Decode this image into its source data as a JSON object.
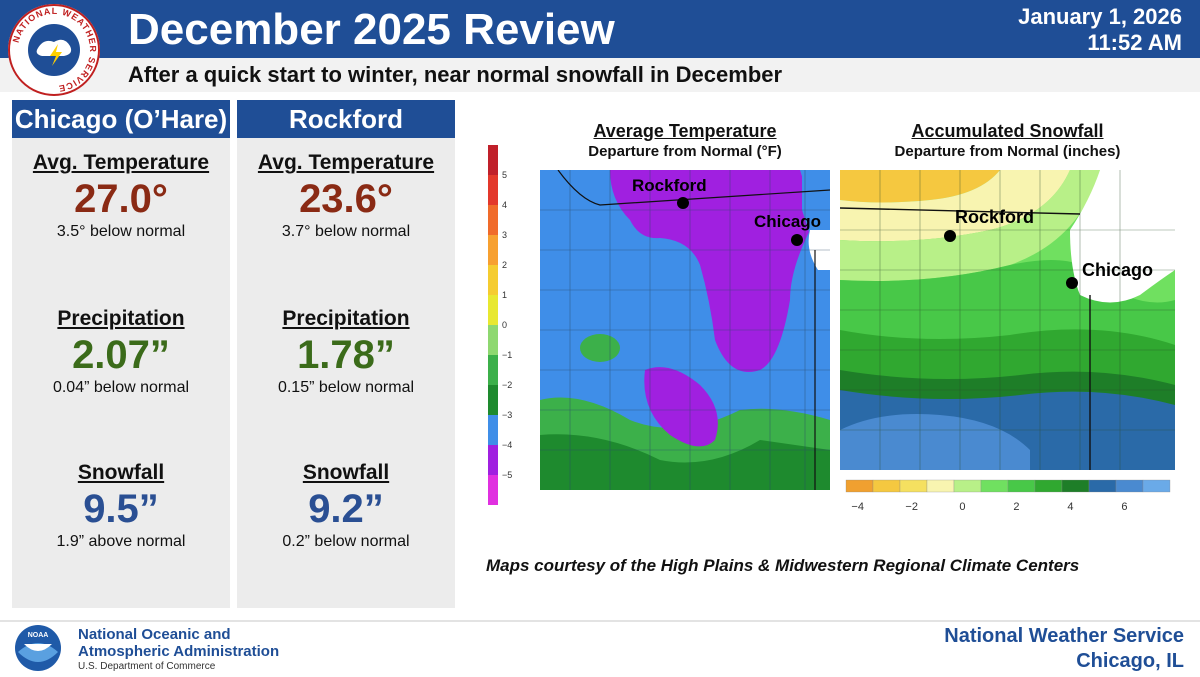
{
  "header": {
    "logo_text": "NATIONAL WEATHER SERVICE",
    "title": "December 2025 Review",
    "date": "January 1, 2026",
    "time": "11:52 AM",
    "subtitle": "After a quick start to winter, near normal snowfall in December"
  },
  "stations": [
    {
      "name": "Chicago (O’Hare)",
      "temp_label": "Avg. Temperature",
      "temp_value": "27.0°",
      "temp_note": "3.5° below normal",
      "precip_label": "Precipitation",
      "precip_value": "2.07”",
      "precip_note": "0.04” below normal",
      "snow_label": "Snowfall",
      "snow_value": "9.5”",
      "snow_note": "1.9” above normal"
    },
    {
      "name": "Rockford",
      "temp_label": "Avg. Temperature",
      "temp_value": "23.6°",
      "temp_note": "3.7° below normal",
      "precip_label": "Precipitation",
      "precip_value": "1.78”",
      "precip_note": "0.15” below normal",
      "snow_label": "Snowfall",
      "snow_value": "9.2”",
      "snow_note": "0.2” below normal"
    }
  ],
  "temp_map": {
    "title": "Average Temperature",
    "subtitle": "Departure from Normal (°F)",
    "city_rockford": "Rockford",
    "city_chicago": "Chicago",
    "legend_ticks": [
      "5",
      "4",
      "3",
      "2",
      "1",
      "0",
      "−1",
      "−2",
      "−3",
      "−4",
      "−5"
    ],
    "legend_colors": [
      "#c0202a",
      "#e3382b",
      "#f06b2a",
      "#f7a030",
      "#f5cc30",
      "#e8e830",
      "#8ed870",
      "#3cb04a",
      "#1e8a2e",
      "#3f8ee8",
      "#a020e0",
      "#e030e0"
    ]
  },
  "snow_map": {
    "title": "Accumulated Snowfall",
    "subtitle": "Departure from Normal (inches)",
    "city_rockford": "Rockford",
    "city_chicago": "Chicago",
    "legend_ticks": [
      "−4",
      "−2",
      "0",
      "2",
      "4",
      "6"
    ],
    "legend_colors": [
      "#f0a030",
      "#f5c840",
      "#f5e060",
      "#f8f4b0",
      "#b8f088",
      "#70e060",
      "#48c848",
      "#30a830",
      "#1e7e28",
      "#2a6aa8",
      "#4a8ad0",
      "#6aaae8"
    ]
  },
  "credit": "Maps courtesy of the High Plains & Midwestern Regional Climate Centers",
  "footer": {
    "noaa_logo_text": "NOAA",
    "noaa_line1": "National Oceanic and",
    "noaa_line2": "Atmospheric Administration",
    "noaa_line3": "U.S. Department of Commerce",
    "nws_line1": "National Weather Service",
    "nws_line2": "Chicago, IL"
  }
}
